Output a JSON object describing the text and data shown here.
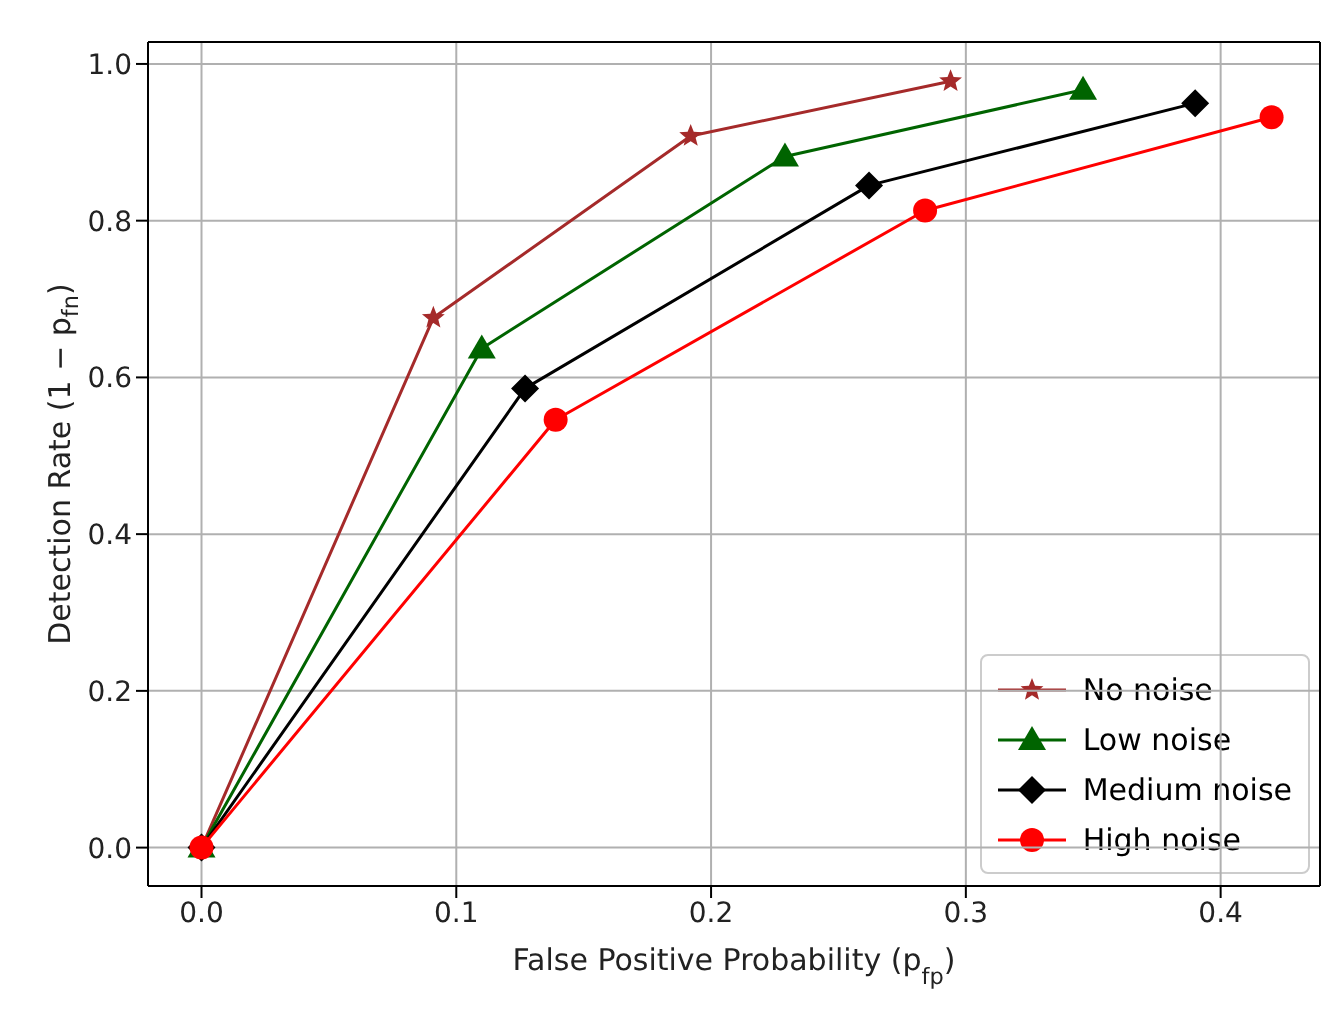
{
  "chart_data": {
    "type": "line",
    "xlabel": "False Positive Probability (p$_{fp}$)",
    "ylabel": "Detection Rate (1 − p$_{fn}$)",
    "xlim": [
      -0.021,
      0.439
    ],
    "ylim": [
      -0.049,
      1.028
    ],
    "xticks": [
      {
        "value": 0,
        "label": "0.0"
      },
      {
        "value": 0.1,
        "label": "0.1"
      },
      {
        "value": 0.2,
        "label": "0.2"
      },
      {
        "value": 0.3,
        "label": "0.3"
      },
      {
        "value": 0.4,
        "label": "0.4"
      }
    ],
    "yticks": [
      {
        "value": 0,
        "label": "0.0"
      },
      {
        "value": 0.2,
        "label": "0.2"
      },
      {
        "value": 0.4,
        "label": "0.4"
      },
      {
        "value": 0.6,
        "label": "0.6"
      },
      {
        "value": 0.8,
        "label": "0.8"
      },
      {
        "value": 1,
        "label": "1.0"
      }
    ],
    "grid": true,
    "legend": "bottom right",
    "line_style": "solid",
    "series": [
      {
        "name": "No noise",
        "color": "#a52a2a",
        "marker": "star",
        "x": [
          0,
          0.091,
          0.192,
          0.294
        ],
        "values": [
          0,
          0.676,
          0.908,
          0.978
        ]
      },
      {
        "name": "Low noise",
        "color": "#006400",
        "marker": "triangle",
        "x": [
          0,
          0.11,
          0.229,
          0.346
        ],
        "values": [
          0,
          0.637,
          0.882,
          0.967
        ]
      },
      {
        "name": "Medium noise",
        "color": "#000000",
        "marker": "diamond",
        "x": [
          0,
          0.127,
          0.262,
          0.39
        ],
        "values": [
          0,
          0.586,
          0.845,
          0.95
        ]
      },
      {
        "name": "High noise",
        "color": "#ff0000",
        "marker": "circle",
        "x": [
          0,
          0.139,
          0.284,
          0.42
        ],
        "values": [
          0,
          0.546,
          0.813,
          0.932
        ]
      }
    ]
  }
}
